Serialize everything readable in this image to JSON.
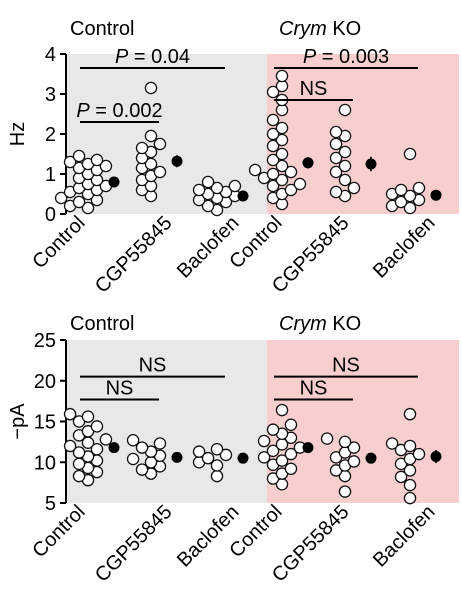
{
  "chart_data": [
    {
      "type": "scatter",
      "panel": "top",
      "ylabel": "Hz",
      "ylim": [
        0,
        4
      ],
      "yticks": [
        0,
        1,
        2,
        3,
        4
      ],
      "categories": [
        "Control",
        "CGP55845",
        "Baclofen"
      ],
      "groups": [
        {
          "title": "Control",
          "title_italic": "",
          "background": "#e8e8e8",
          "values": [
            [
              0.15,
              0.2,
              0.3,
              0.35,
              0.4,
              0.5,
              0.55,
              0.6,
              0.65,
              0.7,
              0.75,
              0.85,
              0.9,
              1.0,
              1.1,
              1.15,
              1.2,
              1.25,
              1.3,
              1.35,
              1.45
            ],
            [
              0.45,
              0.6,
              0.7,
              0.85,
              0.95,
              1.05,
              1.15,
              1.25,
              1.4,
              1.55,
              1.65,
              1.75,
              1.95,
              3.15
            ],
            [
              0.1,
              0.2,
              0.3,
              0.35,
              0.4,
              0.45,
              0.5,
              0.55,
              0.6,
              0.65,
              0.7,
              0.8
            ]
          ],
          "means": [
            0.8,
            1.32,
            0.45
          ],
          "sem": [
            0.06,
            0.15,
            0.05
          ],
          "annotations": [
            {
              "label_before": "P",
              "label_after": " = 0.002",
              "from": 0,
              "to": 1,
              "y": 2.3
            },
            {
              "label_before": "P",
              "label_after": " = 0.04",
              "from": 0,
              "to": 2,
              "y": 3.65
            }
          ]
        },
        {
          "title": "",
          "title_italic": "Crym",
          "title_suffix": " KO",
          "background": "#f9cece",
          "values": [
            [
              0.25,
              0.4,
              0.5,
              0.6,
              0.7,
              0.75,
              0.85,
              0.9,
              1.0,
              1.05,
              1.1,
              1.2,
              1.35,
              1.5,
              1.7,
              1.85,
              2.0,
              2.15,
              2.35,
              2.6,
              2.85,
              3.05,
              3.2,
              3.45
            ],
            [
              0.45,
              0.55,
              0.65,
              0.85,
              1.05,
              1.2,
              1.4,
              1.55,
              1.75,
              1.95,
              2.05,
              2.6
            ],
            [
              0.15,
              0.2,
              0.3,
              0.35,
              0.45,
              0.5,
              0.6,
              0.65,
              1.5
            ]
          ],
          "means": [
            1.28,
            1.25,
            0.47
          ],
          "sem": [
            0.14,
            0.18,
            0.1
          ],
          "annotations": [
            {
              "label_before": "NS",
              "label_after": "",
              "from": 0,
              "to": 1,
              "y": 2.85
            },
            {
              "label_before": "P",
              "label_after": " = 0.003",
              "from": 0,
              "to": 2,
              "y": 3.65
            }
          ]
        }
      ]
    },
    {
      "type": "scatter",
      "panel": "bottom",
      "ylabel": "−pA",
      "ylim": [
        5,
        25
      ],
      "yticks": [
        5,
        10,
        15,
        20,
        25
      ],
      "categories": [
        "Control",
        "CGP55845",
        "Baclofen"
      ],
      "groups": [
        {
          "title": "Control",
          "title_italic": "",
          "background": "#e8e8e8",
          "values": [
            [
              7.8,
              8.3,
              8.8,
              9.3,
              9.8,
              10.2,
              10.7,
              11.2,
              11.6,
              12.0,
              12.4,
              12.8,
              13.3,
              13.8,
              14.4,
              15.0,
              15.6,
              15.9
            ],
            [
              8.6,
              9.1,
              9.5,
              10.0,
              10.4,
              10.8,
              11.3,
              11.8,
              12.3,
              12.7
            ],
            [
              8.3,
              9.6,
              10.0,
              10.5,
              10.9,
              11.3,
              11.6
            ]
          ],
          "means": [
            11.8,
            10.6,
            10.5
          ],
          "sem": [
            0.4,
            0.4,
            0.4
          ],
          "annotations": [
            {
              "label_before": "NS",
              "label_after": "",
              "from": 0,
              "to": 1,
              "y": 17.7
            },
            {
              "label_before": "NS",
              "label_after": "",
              "from": 0,
              "to": 2,
              "y": 20.5
            }
          ]
        },
        {
          "title": "",
          "title_italic": "Crym",
          "title_suffix": " KO",
          "background": "#f9cece",
          "values": [
            [
              7.3,
              8.0,
              8.6,
              9.2,
              9.7,
              10.2,
              10.6,
              11.0,
              11.4,
              11.8,
              12.2,
              12.6,
              13.0,
              13.5,
              14.0,
              14.6,
              16.4
            ],
            [
              6.4,
              8.3,
              9.0,
              9.6,
              10.1,
              10.6,
              11.2,
              11.8,
              12.5,
              12.9
            ],
            [
              5.6,
              7.2,
              8.2,
              9.0,
              9.8,
              10.4,
              11.0,
              11.5,
              12.0,
              12.3,
              15.9
            ]
          ],
          "means": [
            11.8,
            10.5,
            10.7
          ],
          "sem": [
            0.5,
            0.5,
            0.8
          ],
          "annotations": [
            {
              "label_before": "NS",
              "label_after": "",
              "from": 0,
              "to": 1,
              "y": 17.7
            },
            {
              "label_before": "NS",
              "label_after": "",
              "from": 0,
              "to": 2,
              "y": 20.5
            }
          ]
        }
      ]
    }
  ]
}
